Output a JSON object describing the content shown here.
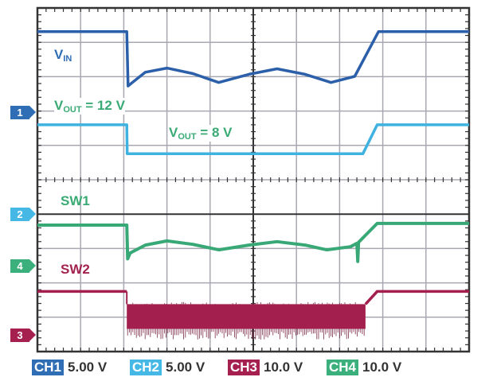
{
  "chart_data": {
    "type": "line",
    "title": "",
    "grid": true,
    "x_divisions": 10,
    "y_divisions": 10,
    "x_unit": "div",
    "series": [
      {
        "channel": "CH1",
        "color": "#2b5fa9",
        "scale_v_per_div": 5,
        "ref_div_from_top": 3.03,
        "x": [
          0,
          2.07,
          2.1,
          2.2,
          2.5,
          3.0,
          3.6,
          4.2,
          4.9,
          5.55,
          6.2,
          6.8,
          7.35,
          7.9,
          10
        ],
        "y": [
          11.7,
          11.7,
          3.8,
          4.3,
          5.8,
          6.4,
          5.6,
          4.3,
          5.5,
          6.3,
          5.5,
          4.3,
          5.2,
          11.7,
          11.7
        ]
      },
      {
        "channel": "CH2",
        "color": "#3fb2e0",
        "scale_v_per_div": 5,
        "ref_div_from_top": 6.0,
        "x": [
          0,
          2.07,
          2.08,
          7.54,
          7.87,
          10
        ],
        "y": [
          13.0,
          13.0,
          8.8,
          8.8,
          13.0,
          13.0
        ]
      },
      {
        "channel": "CH4",
        "color": "#38a877",
        "scale_v_per_div": 10,
        "ref_div_from_top": 7.5,
        "x": [
          0,
          2.07,
          2.09,
          2.15,
          2.5,
          3.0,
          3.6,
          4.2,
          4.9,
          5.55,
          6.2,
          6.7,
          7.25,
          7.4,
          7.42,
          7.44,
          7.87,
          10
        ],
        "y": [
          11.8,
          11.8,
          2.0,
          3.7,
          6.0,
          7.2,
          6.2,
          4.6,
          6.0,
          7.0,
          6.0,
          4.6,
          5.5,
          6.5,
          1.2,
          6.8,
          12.3,
          12.3
        ]
      },
      {
        "channel": "CH3",
        "color": "#a3204e",
        "scale_v_per_div": 10,
        "ref_div_from_top": 9.5,
        "x": [
          0,
          2.07,
          7.6,
          7.87,
          10
        ],
        "y": [
          12.5,
          12.5,
          8.8,
          12.5,
          12.5
        ],
        "switching": {
          "start": 2.07,
          "end": 7.6,
          "high": 8.8,
          "low": 1.6,
          "spike_low": -1.0
        }
      }
    ],
    "annotations": {
      "vin": {
        "main": "V",
        "sub": "IN"
      },
      "vout12": {
        "main": "V",
        "sub": "OUT",
        "rest": " = 12 V"
      },
      "vout8": {
        "main": "V",
        "sub": "OUT",
        "rest": " = 8 V"
      },
      "sw1": "SW1",
      "sw2": "SW2"
    },
    "markers": [
      "1",
      "2",
      "4",
      "3"
    ],
    "legend": [
      {
        "ch": "CH1",
        "scale": "5.00 V",
        "color": "#2f6db5"
      },
      {
        "ch": "CH2",
        "scale": "5.00 V",
        "color": "#45b8e6"
      },
      {
        "ch": "CH3",
        "scale": "10.0 V",
        "color": "#a51f4f"
      },
      {
        "ch": "CH4",
        "scale": "10.0 V",
        "color": "#3bb07c"
      }
    ]
  }
}
